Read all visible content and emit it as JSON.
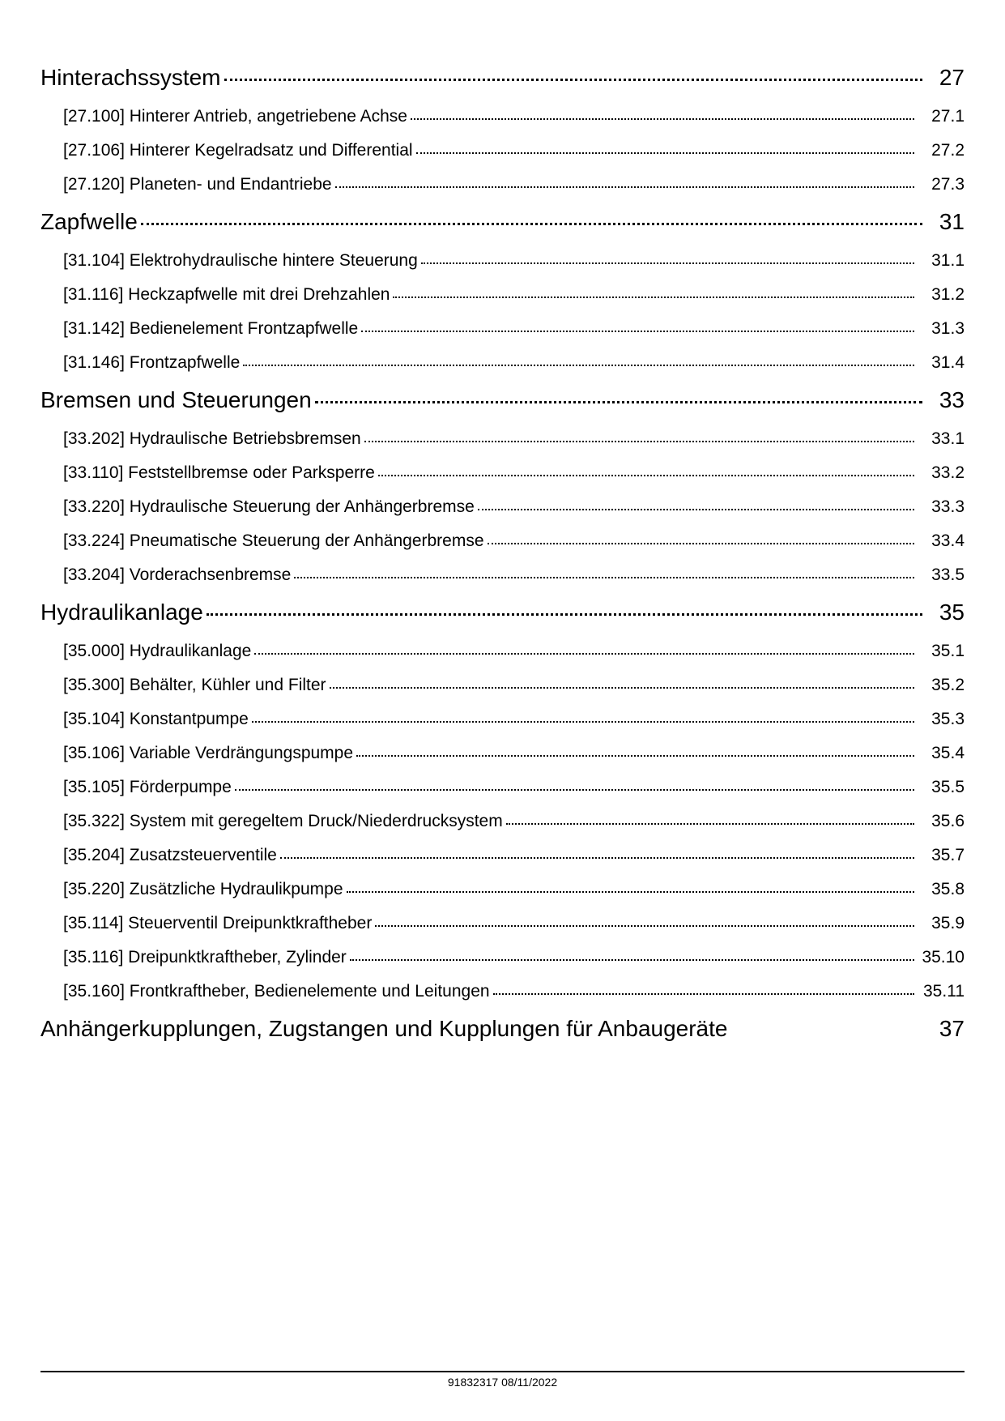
{
  "footer": {
    "doc_id": "91832317",
    "date": "08/11/2022"
  },
  "sections": [
    {
      "title": "Hinterachssystem",
      "page": "27",
      "leader": true,
      "subs": [
        {
          "label": "[27.100] Hinterer Antrieb, angetriebene Achse",
          "page": "27.1"
        },
        {
          "label": "[27.106] Hinterer Kegelradsatz und Differential",
          "page": "27.2"
        },
        {
          "label": "[27.120] Planeten- und Endantriebe",
          "page": "27.3"
        }
      ]
    },
    {
      "title": "Zapfwelle",
      "page": "31",
      "leader": true,
      "subs": [
        {
          "label": "[31.104] Elektrohydraulische hintere Steuerung",
          "page": "31.1"
        },
        {
          "label": "[31.116] Heckzapfwelle mit drei Drehzahlen",
          "page": "31.2"
        },
        {
          "label": "[31.142] Bedienelement Frontzapfwelle",
          "page": "31.3"
        },
        {
          "label": "[31.146] Frontzapfwelle",
          "page": "31.4"
        }
      ]
    },
    {
      "title": "Bremsen und Steuerungen",
      "page": "33",
      "leader": true,
      "subs": [
        {
          "label": "[33.202] Hydraulische Betriebsbremsen",
          "page": "33.1"
        },
        {
          "label": "[33.110] Feststellbremse oder Parksperre",
          "page": "33.2"
        },
        {
          "label": "[33.220] Hydraulische Steuerung der Anhängerbremse",
          "page": "33.3"
        },
        {
          "label": "[33.224] Pneumatische Steuerung der Anhängerbremse",
          "page": "33.4"
        },
        {
          "label": "[33.204] Vorderachsenbremse",
          "page": "33.5"
        }
      ]
    },
    {
      "title": "Hydraulikanlage",
      "page": "35",
      "leader": true,
      "subs": [
        {
          "label": "[35.000] Hydraulikanlage",
          "page": "35.1"
        },
        {
          "label": "[35.300] Behälter, Kühler und Filter",
          "page": "35.2"
        },
        {
          "label": "[35.104] Konstantpumpe",
          "page": "35.3"
        },
        {
          "label": "[35.106] Variable Verdrängungspumpe",
          "page": "35.4"
        },
        {
          "label": "[35.105] Förderpumpe",
          "page": "35.5"
        },
        {
          "label": "[35.322] System mit geregeltem Druck/Niederdrucksystem",
          "page": "35.6"
        },
        {
          "label": "[35.204] Zusatzsteuerventile",
          "page": "35.7"
        },
        {
          "label": "[35.220] Zusätzliche Hydraulikpumpe",
          "page": "35.8"
        },
        {
          "label": "[35.114] Steuerventil Dreipunktkraftheber",
          "page": "35.9"
        },
        {
          "label": "[35.116] Dreipunktkraftheber, Zylinder",
          "page": "35.10"
        },
        {
          "label": "[35.160] Frontkraftheber, Bedienelemente und Leitungen",
          "page": "35.11"
        }
      ]
    },
    {
      "title": "Anhängerkupplungen, Zugstangen und Kupplungen für Anbaugeräte",
      "page": "37",
      "leader": false,
      "subs": []
    }
  ]
}
